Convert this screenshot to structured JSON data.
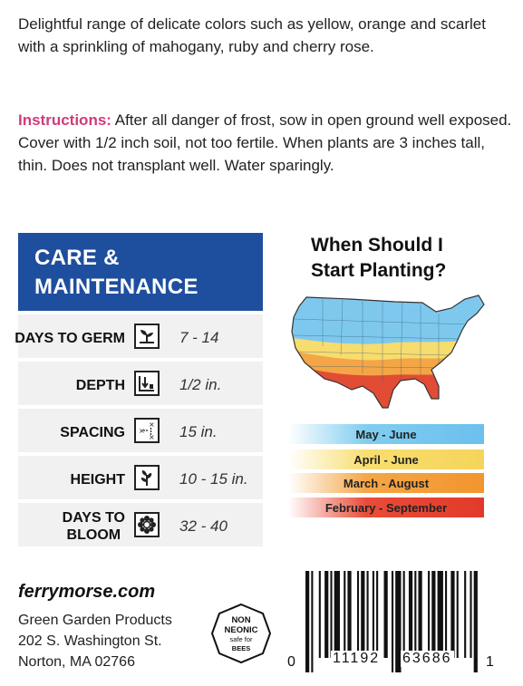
{
  "description": "Delightful range of delicate colors such as yellow, orange and scarlet with a sprinkling of mahogany, ruby and cherry rose.",
  "instructions": {
    "label": "Instructions:",
    "text": "After all danger of frost, sow in open ground well exposed. Cover with 1/2 inch soil, not too fertile. When plants are 3 inches tall, thin. Does not transplant well. Water sparingly."
  },
  "care": {
    "title_line1": "CARE &",
    "title_line2": "MAINTENANCE",
    "rows": [
      {
        "label": "DAYS TO GERM",
        "value": "7 - 14",
        "icon": "germination-icon"
      },
      {
        "label": "DEPTH",
        "value": "1/2 in.",
        "icon": "depth-icon"
      },
      {
        "label": "SPACING",
        "value": "15 in.",
        "icon": "spacing-icon"
      },
      {
        "label": "HEIGHT",
        "value": "10 - 15 in.",
        "icon": "height-icon"
      },
      {
        "label_line1": "DAYS TO",
        "label_line2": "BLOOM",
        "value": "32 - 40",
        "icon": "bloom-icon"
      }
    ]
  },
  "planting": {
    "title_line1": "When Should I",
    "title_line2": "Start Planting?",
    "zones": [
      {
        "label": "May - June",
        "color": "#6cc0ee"
      },
      {
        "label": "April - June",
        "color": "#f6d45a"
      },
      {
        "label": "March - August",
        "color": "#f2952e"
      },
      {
        "label": "February - September",
        "color": "#e23a2a"
      }
    ]
  },
  "company": {
    "website": "ferrymorse.com",
    "name": "Green Garden Products",
    "street": "202 S. Washington St.",
    "city": "Norton, MA 02766"
  },
  "badge": {
    "line1": "NON",
    "line2": "NEONIC",
    "line3": "safe for",
    "line4": "BEES"
  },
  "barcode": {
    "left_digit": "0",
    "group1": "11192",
    "group2": "63686",
    "right_digit": "1"
  }
}
